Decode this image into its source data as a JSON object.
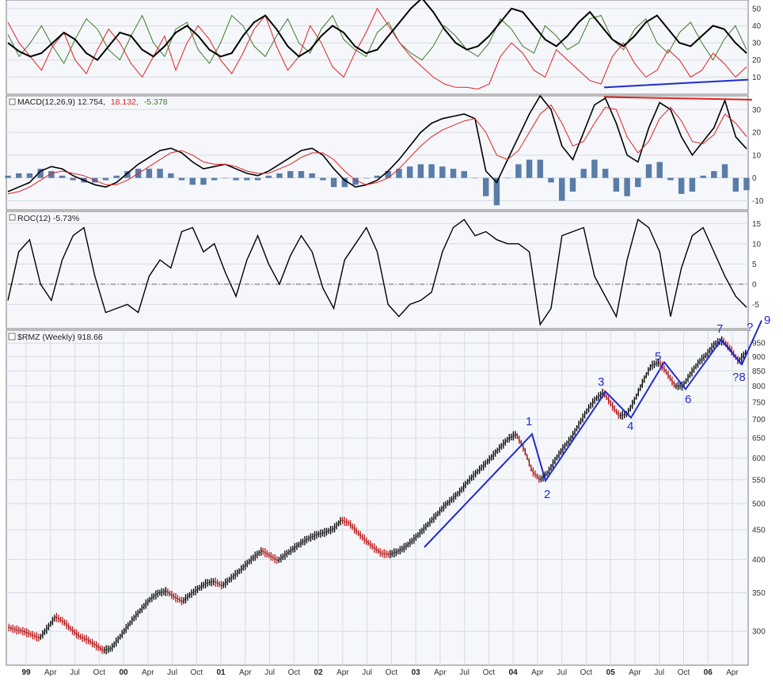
{
  "chart_data": [
    {
      "type": "line",
      "panel": "oscillator",
      "title": "",
      "y_ticks": [
        10,
        20,
        30,
        40,
        50
      ],
      "ylim": [
        0,
        55
      ],
      "series": [
        {
          "color": "#3f7a2a",
          "values": [
            35,
            22,
            30,
            40,
            28,
            18,
            32,
            44,
            38,
            26,
            20,
            34,
            46,
            30,
            22,
            38,
            42,
            26,
            18,
            30,
            46,
            40,
            28,
            22,
            34,
            44,
            30,
            24,
            38,
            46,
            32,
            26,
            22,
            36,
            42,
            30,
            24,
            20,
            28,
            40,
            34,
            26,
            22,
            30,
            44,
            38,
            28,
            24,
            40,
            34,
            26,
            30,
            44,
            46,
            32,
            26,
            38,
            44,
            30,
            24,
            36,
            42,
            30,
            20,
            32,
            40,
            26
          ]
        },
        {
          "color": "#e02020",
          "values": [
            42,
            30,
            22,
            14,
            28,
            36,
            20,
            12,
            26,
            38,
            30,
            18,
            10,
            22,
            34,
            14,
            30,
            40,
            32,
            20,
            12,
            24,
            38,
            46,
            28,
            14,
            22,
            40,
            30,
            16,
            10,
            24,
            36,
            50,
            40,
            30,
            22,
            16,
            10,
            6,
            4,
            4,
            3,
            6,
            22,
            30,
            24,
            14,
            10,
            26,
            20,
            14,
            8,
            6,
            22,
            30,
            18,
            10,
            14,
            26,
            20,
            10,
            14,
            24,
            18,
            10,
            16
          ]
        },
        {
          "color": "#000000",
          "values": [
            30,
            25,
            22,
            24,
            30,
            36,
            32,
            24,
            20,
            28,
            36,
            34,
            26,
            22,
            28,
            36,
            40,
            34,
            26,
            22,
            24,
            34,
            42,
            46,
            38,
            28,
            22,
            26,
            34,
            40,
            36,
            28,
            24,
            26,
            34,
            42,
            50,
            56,
            48,
            38,
            30,
            26,
            28,
            34,
            42,
            50,
            48,
            40,
            32,
            28,
            34,
            42,
            48,
            40,
            32,
            28,
            34,
            42,
            46,
            38,
            30,
            28,
            34,
            40,
            38,
            30,
            24
          ]
        }
      ]
    },
    {
      "type": "line",
      "panel": "macd",
      "title": "MACD(12,26,9) 12.754, 18.132, -5.378",
      "title_parts": {
        "label": "MACD(12,26,9) 12.754,",
        "signal": "18.132,",
        "hist": "-5.378"
      },
      "y_ticks": [
        -10,
        0,
        10,
        20,
        30
      ],
      "ylim": [
        -14,
        36
      ],
      "series": [
        {
          "name": "MACD",
          "color": "#000000",
          "values": [
            -6,
            -4,
            -2,
            3,
            5,
            4,
            1,
            -1,
            -3,
            -4,
            -2,
            2,
            6,
            9,
            12,
            13,
            11,
            7,
            4,
            5,
            6,
            4,
            2,
            1,
            3,
            6,
            9,
            12,
            13,
            10,
            4,
            -1,
            -4,
            -3,
            -1,
            3,
            8,
            14,
            20,
            24,
            26,
            27,
            28,
            26,
            3,
            -2,
            8,
            18,
            28,
            36,
            30,
            14,
            8,
            20,
            32,
            35,
            24,
            10,
            7,
            22,
            33,
            30,
            18,
            10,
            16,
            22,
            34,
            18,
            12.754
          ]
        },
        {
          "name": "Signal",
          "color": "#e02020",
          "values": [
            -7,
            -6,
            -4,
            -1,
            2,
            3,
            2,
            1,
            -1,
            -3,
            -3,
            -1,
            2,
            5,
            8,
            11,
            12,
            10,
            7,
            6,
            6,
            5,
            3,
            2,
            2,
            4,
            6,
            9,
            11,
            11,
            8,
            3,
            -1,
            -3,
            -2,
            0,
            4,
            9,
            14,
            18,
            21,
            23,
            25,
            26,
            20,
            10,
            8,
            12,
            20,
            28,
            32,
            24,
            14,
            16,
            24,
            31,
            30,
            18,
            11,
            16,
            26,
            31,
            25,
            16,
            15,
            19,
            28,
            24,
            18.132
          ]
        }
      ],
      "histogram": {
        "name": "Histogram",
        "color": "#5a7ca8",
        "values": [
          1,
          2,
          2,
          4,
          3,
          1,
          -1,
          -2,
          -2,
          -1,
          1,
          3,
          4,
          4,
          4,
          2,
          -1,
          -3,
          -3,
          -1,
          0,
          -1,
          -1,
          -1,
          1,
          2,
          3,
          3,
          2,
          -1,
          -4,
          -4,
          -3,
          0,
          1,
          3,
          4,
          5,
          6,
          6,
          5,
          4,
          3,
          0,
          -8,
          -12,
          0,
          6,
          8,
          8,
          -2,
          -10,
          -6,
          4,
          8,
          4,
          -6,
          -8,
          -4,
          6,
          7,
          -1,
          -7,
          -6,
          1,
          3,
          6,
          -6,
          -5.378
        ]
      },
      "annotations": [
        {
          "type": "trendline",
          "color": "#e02020"
        }
      ]
    },
    {
      "type": "line",
      "panel": "roc",
      "title": "ROC(12) -5.73%",
      "y_ticks": [
        -5,
        0,
        5,
        10,
        15
      ],
      "ylim": [
        -11,
        18
      ],
      "zero_line": true,
      "series": [
        {
          "name": "ROC(12)",
          "color": "#000000",
          "values": [
            -4,
            8,
            11,
            0,
            -4,
            6,
            12,
            14,
            2,
            -7,
            -6,
            -5,
            -7,
            2,
            6,
            4,
            13,
            14,
            8,
            10,
            3,
            -3,
            6,
            12,
            5,
            0,
            7,
            12,
            8,
            -1,
            -6,
            6,
            10,
            14,
            8,
            -5,
            -8,
            -5,
            -4,
            -2,
            8,
            14,
            16,
            12,
            13,
            11,
            10,
            10,
            8,
            -10,
            -6,
            12,
            13,
            14,
            2,
            -3,
            -8,
            6,
            16,
            14,
            8,
            -8,
            4,
            12,
            14,
            8,
            2,
            -3,
            -5.73
          ]
        }
      ]
    },
    {
      "type": "line",
      "panel": "price",
      "title": "$RMZ (Weekly) 918.66",
      "y_scale": "log",
      "y_ticks": [
        300,
        350,
        400,
        450,
        500,
        550,
        600,
        650,
        700,
        750,
        800,
        850,
        900,
        950
      ],
      "ylim": [
        262,
        1000
      ],
      "x_ticks": [
        {
          "label": "99",
          "year": true
        },
        {
          "label": "Apr"
        },
        {
          "label": "Jul"
        },
        {
          "label": "Oct"
        },
        {
          "label": "00",
          "year": true
        },
        {
          "label": "Apr"
        },
        {
          "label": "Jul"
        },
        {
          "label": "Oct"
        },
        {
          "label": "01",
          "year": true
        },
        {
          "label": "Apr"
        },
        {
          "label": "Jul"
        },
        {
          "label": "Oct"
        },
        {
          "label": "02",
          "year": true
        },
        {
          "label": "Apr"
        },
        {
          "label": "Jul"
        },
        {
          "label": "Oct"
        },
        {
          "label": "03",
          "year": true
        },
        {
          "label": "Apr"
        },
        {
          "label": "Jul"
        },
        {
          "label": "Oct"
        },
        {
          "label": "04",
          "year": true
        },
        {
          "label": "Apr"
        },
        {
          "label": "Jul"
        },
        {
          "label": "Oct"
        },
        {
          "label": "05",
          "year": true
        },
        {
          "label": "Apr"
        },
        {
          "label": "Jul"
        },
        {
          "label": "Oct"
        },
        {
          "label": "06",
          "year": true
        },
        {
          "label": "Apr"
        }
      ],
      "series": [
        {
          "name": "$RMZ",
          "color": "#000000",
          "values": [
            305,
            302,
            300,
            296,
            292,
            304,
            318,
            312,
            302,
            294,
            290,
            284,
            278,
            280,
            292,
            305,
            318,
            330,
            342,
            350,
            352,
            344,
            338,
            348,
            356,
            364,
            366,
            360,
            370,
            380,
            392,
            404,
            414,
            406,
            398,
            408,
            418,
            428,
            436,
            442,
            446,
            452,
            468,
            462,
            446,
            432,
            420,
            410,
            408,
            412,
            420,
            432,
            446,
            462,
            478,
            496,
            510,
            526,
            548,
            566,
            584,
            604,
            626,
            648,
            660,
            622,
            570,
            550,
            566,
            598,
            626,
            652,
            690,
            728,
            760,
            780,
            742,
            710,
            716,
            760,
            816,
            868,
            880,
            842,
            800,
            800,
            842,
            880,
            908,
            948,
            960,
            926,
            882,
            918.66
          ]
        }
      ],
      "wave_labels": [
        "1",
        "2",
        "3",
        "4",
        "5",
        "6",
        "7",
        "?8",
        "?",
        "9"
      ]
    }
  ]
}
